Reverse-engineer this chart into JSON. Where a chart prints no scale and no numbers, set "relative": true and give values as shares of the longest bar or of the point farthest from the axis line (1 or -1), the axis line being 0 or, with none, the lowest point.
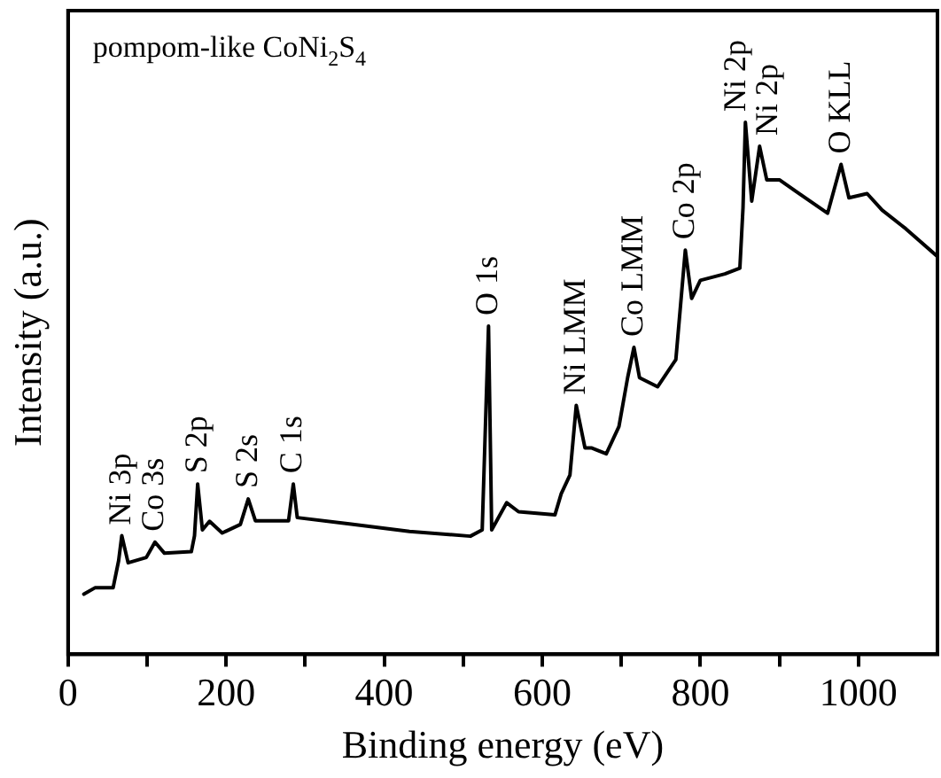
{
  "chart_data": {
    "type": "line",
    "relative": true,
    "xlabel": "Binding energy (eV)",
    "ylabel": "Intensity (a.u.)",
    "xlim": [
      0,
      1100
    ],
    "xticks": [
      0,
      {
        "value": 100,
        "label": null
      },
      200,
      {
        "value": 300,
        "label": null
      },
      400,
      {
        "value": 500,
        "label": null
      },
      600,
      {
        "value": 700,
        "label": null
      },
      800,
      {
        "value": 900,
        "label": null
      },
      1000
    ],
    "grid": false,
    "legend": false,
    "marker": "none",
    "line_style": "solid",
    "series": [
      {
        "color": "#000000",
        "x": [
          20,
          34,
          57,
          64,
          68,
          76,
          99,
          110,
          122,
          156,
          160,
          164,
          170,
          179,
          195,
          218,
          228,
          237,
          256,
          279,
          285,
          290,
          356,
          432,
          509,
          524,
          532,
          536,
          555,
          570,
          616,
          624,
          635,
          643,
          654,
          662,
          681,
          697,
          708,
          716,
          723,
          746,
          769,
          775,
          781,
          789,
          800,
          831,
          850,
          854,
          857,
          865,
          875,
          884,
          900,
          922,
          961,
          978,
          988,
          1011,
          1030,
          1060,
          1099
        ],
        "values": [
          0.113,
          0.125,
          0.125,
          0.176,
          0.223,
          0.172,
          0.182,
          0.211,
          0.19,
          0.193,
          0.223,
          0.32,
          0.234,
          0.25,
          0.228,
          0.244,
          0.292,
          0.251,
          0.251,
          0.251,
          0.32,
          0.257,
          0.245,
          0.231,
          0.222,
          0.234,
          0.617,
          0.234,
          0.285,
          0.268,
          0.262,
          0.302,
          0.337,
          0.468,
          0.388,
          0.388,
          0.377,
          0.428,
          0.52,
          0.577,
          0.52,
          0.503,
          0.554,
          0.657,
          0.76,
          0.669,
          0.703,
          0.715,
          0.726,
          0.84,
          1,
          0.852,
          0.955,
          0.892,
          0.892,
          0.869,
          0.829,
          0.921,
          0.858,
          0.866,
          0.835,
          0.8,
          0.749
        ]
      }
    ],
    "annotations": [
      "pompom-like CoNi$_{2}$S$_{4}$",
      {
        "text": "Ni 3p",
        "x": 68,
        "y": 0.223
      },
      {
        "text": "Co 3s",
        "x": 110,
        "y": 0.211
      },
      {
        "text": "S 2p",
        "x": 164,
        "y": 0.32
      },
      {
        "text": "S 2s",
        "x": 228,
        "y": 0.292
      },
      {
        "text": "C 1s",
        "x": 285,
        "y": 0.32
      },
      {
        "text": "O 1s",
        "x": 532,
        "y": 0.617
      },
      {
        "text": "Ni LMM",
        "x": 643,
        "y": 0.468
      },
      {
        "text": "Co LMM",
        "x": 716,
        "y": 0.577
      },
      {
        "text": "Co 2p",
        "x": 781,
        "y": 0.76
      },
      {
        "text": "Ni 2p",
        "x": 857,
        "y": 1
      },
      {
        "text": "Ni 2p",
        "x": 875,
        "y": 0.955
      },
      {
        "text": "O KLL",
        "x": 978,
        "y": 0.921
      }
    ]
  }
}
